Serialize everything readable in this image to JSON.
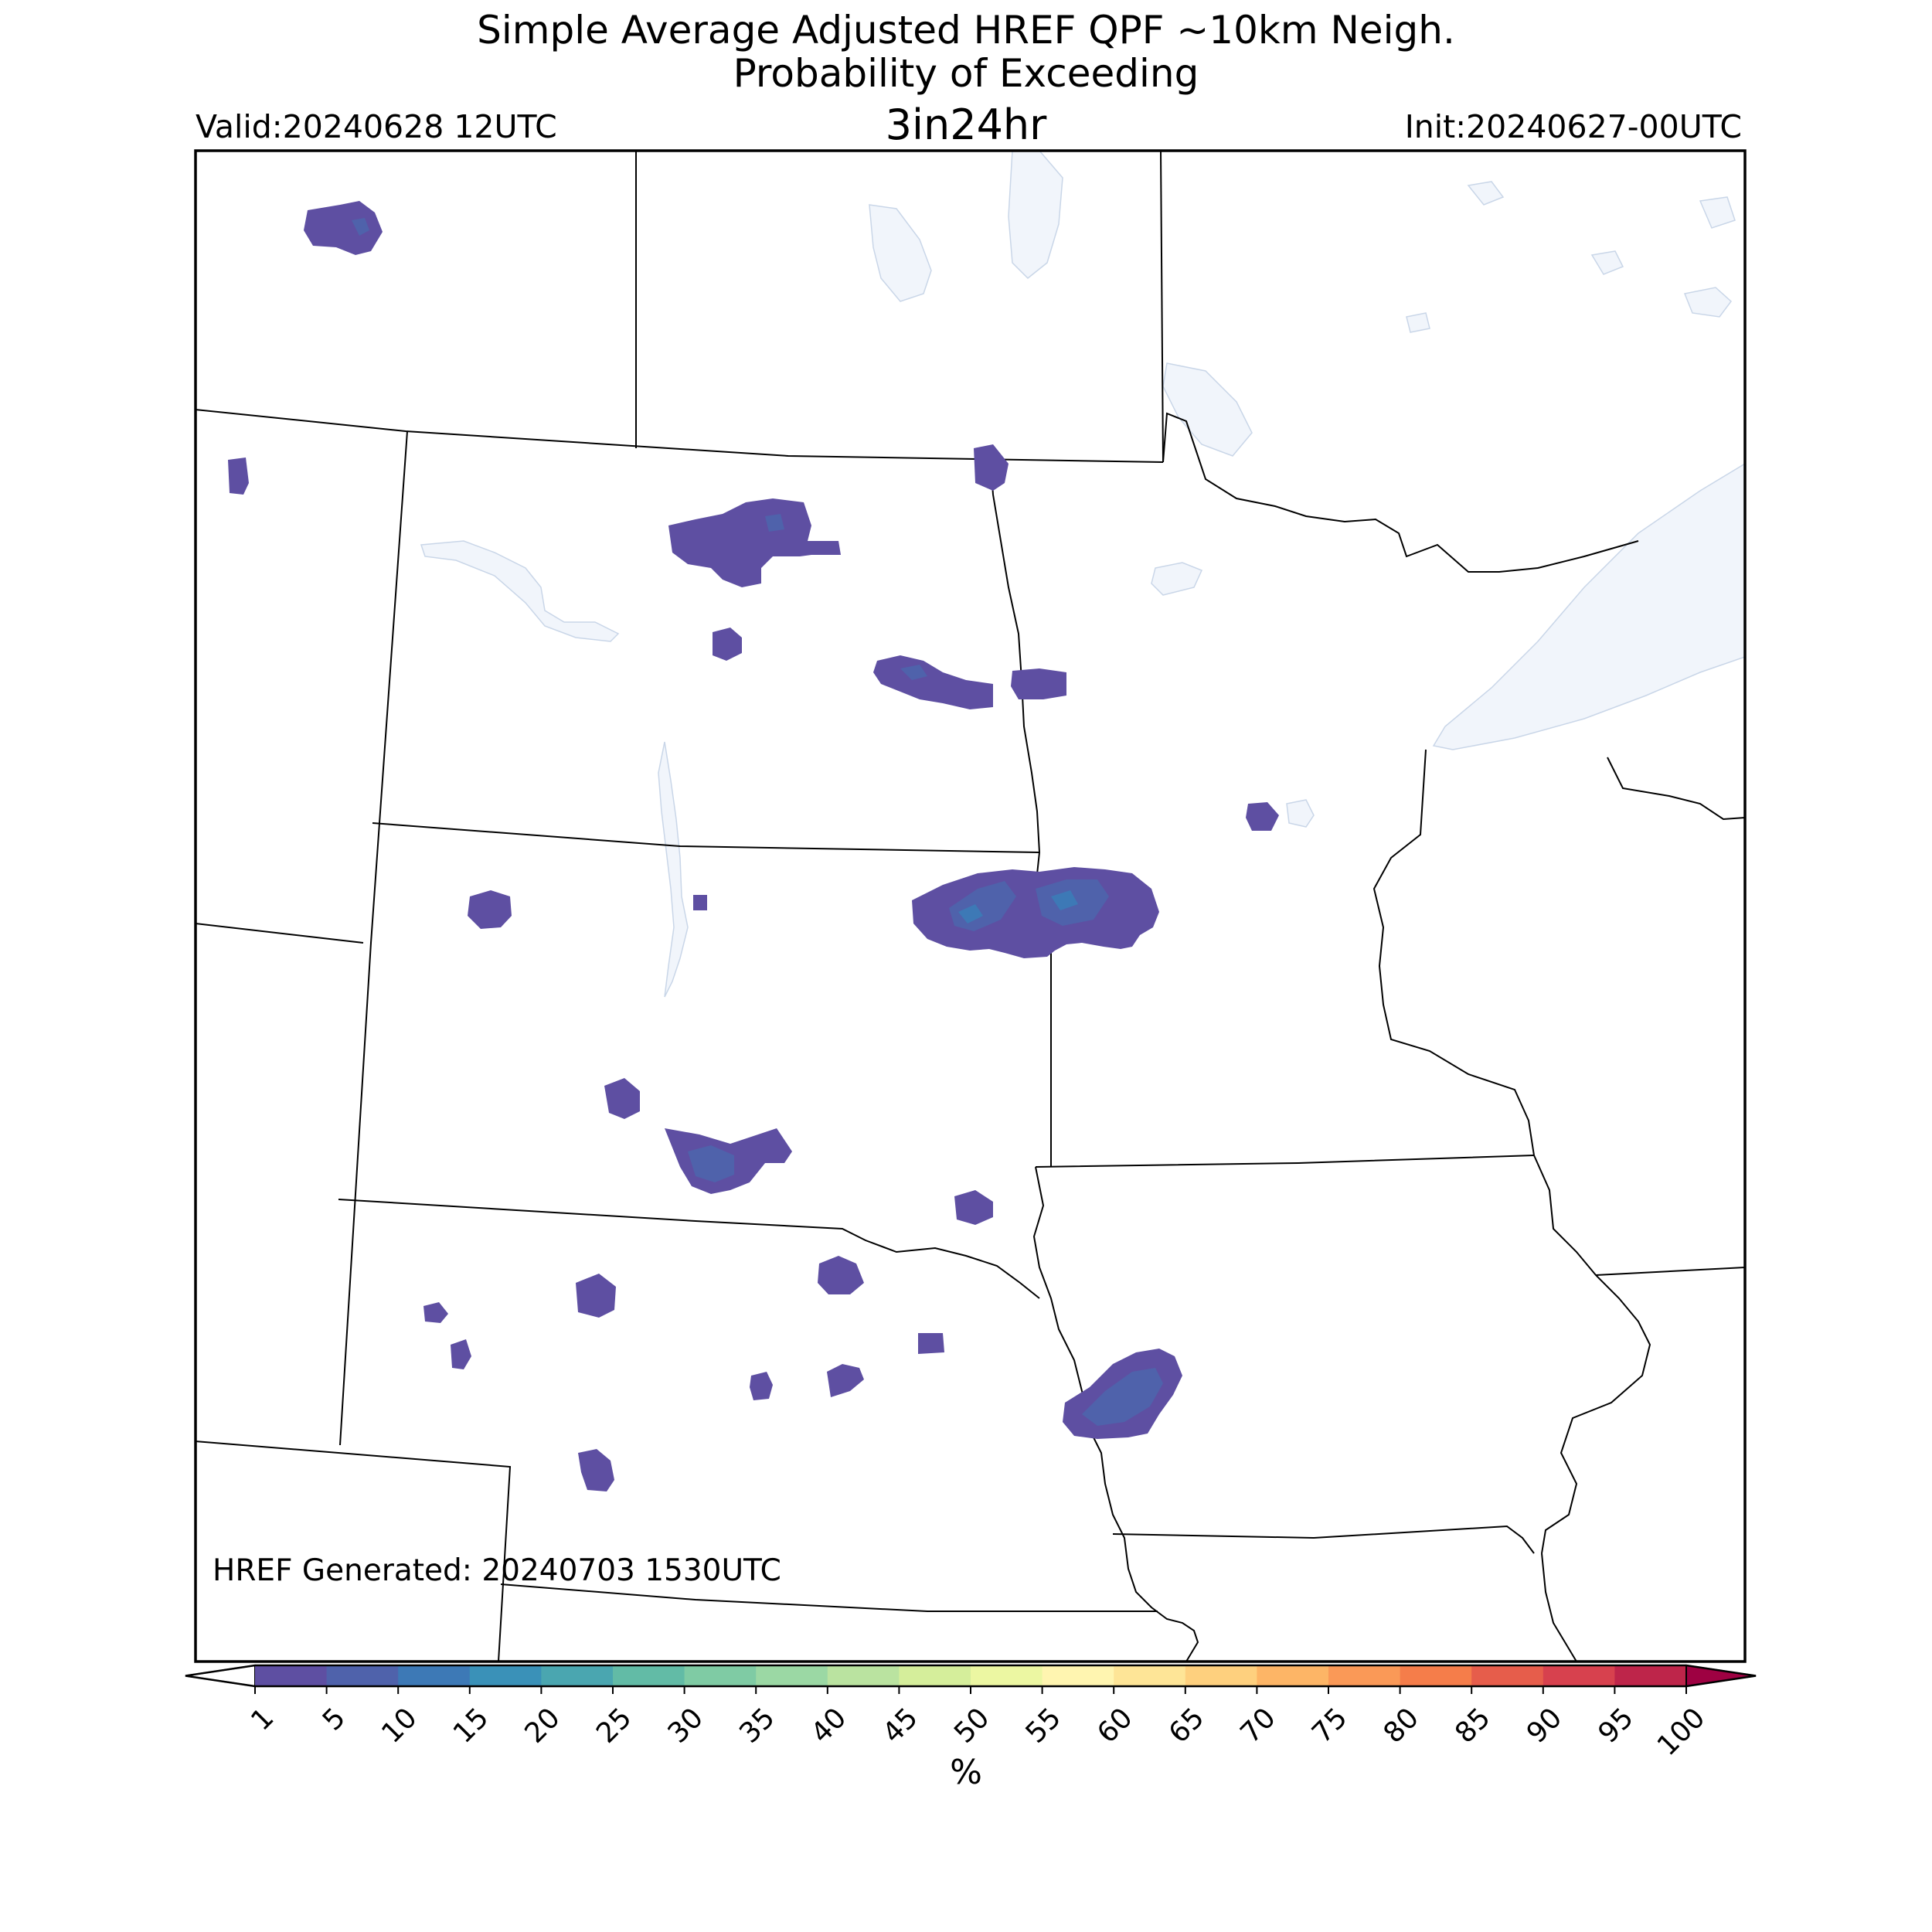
{
  "header": {
    "title_line1": "Simple Average Adjusted HREF QPF ~10km Neigh.",
    "title_line2": "Probability of Exceeding",
    "title_line3": "3in24hr",
    "valid": "Valid:20240628 12UTC",
    "init": "Init:20240627-00UTC"
  },
  "map": {
    "generated": "HREF Generated: 20240703 1530UTC",
    "colors": {
      "water": "#f1f5fb",
      "boundary": "#000000",
      "frame": "#000000"
    }
  },
  "colorbar": {
    "ticks": [
      "1",
      "5",
      "10",
      "15",
      "20",
      "25",
      "30",
      "35",
      "40",
      "45",
      "50",
      "55",
      "60",
      "65",
      "70",
      "75",
      "80",
      "85",
      "90",
      "95",
      "100"
    ],
    "colors": [
      "#5e4fa2",
      "#4f62ab",
      "#3d79b6",
      "#3a91b8",
      "#4aa6b0",
      "#62bba6",
      "#7fcba4",
      "#9bd8a4",
      "#bae3a0",
      "#d5ee9b",
      "#ecf7a2",
      "#fff5b0",
      "#fee597",
      "#fed07e",
      "#fdb566",
      "#fa9957",
      "#f57d4a",
      "#e65d4b",
      "#d7414e",
      "#be254a",
      "#9e0142"
    ],
    "unit": "%",
    "extend": "both"
  }
}
